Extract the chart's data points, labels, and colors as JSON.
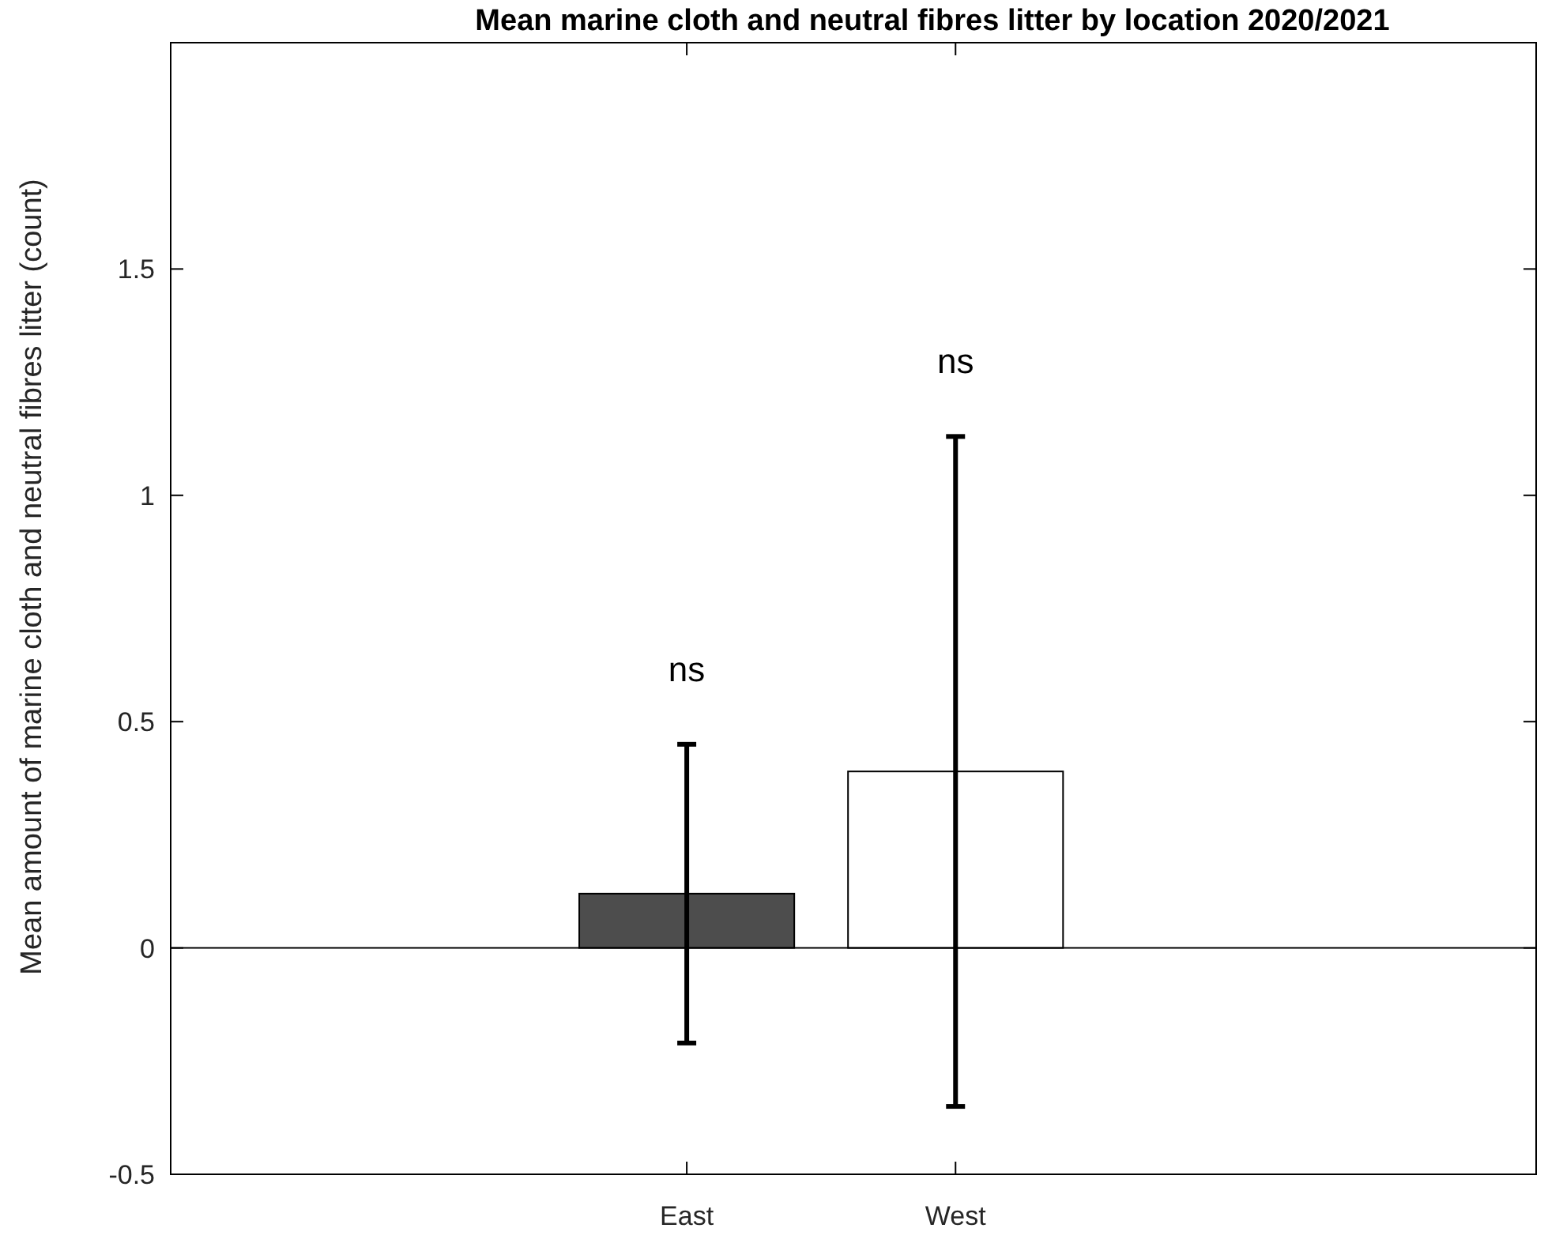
{
  "chart_data": {
    "type": "bar",
    "title": "Mean marine cloth and neutral fibres litter by location 2020/2021",
    "ylabel": "Mean amount of marine cloth and neutral fibres litter (count)",
    "categories": [
      "East",
      "West"
    ],
    "values": [
      0.12,
      0.39
    ],
    "colors": [
      "#4d4d4d",
      "#ffffff"
    ],
    "errors": [
      0.33,
      0.74
    ],
    "ylim": [
      -0.5,
      2
    ],
    "yticks": [
      -0.5,
      0,
      0.5,
      1,
      1.5
    ],
    "ref_lines": [
      {
        "axis": "y",
        "value": 0,
        "color": "#000000"
      }
    ],
    "annotations": [
      "ns",
      "ns"
    ],
    "grid": false
  }
}
